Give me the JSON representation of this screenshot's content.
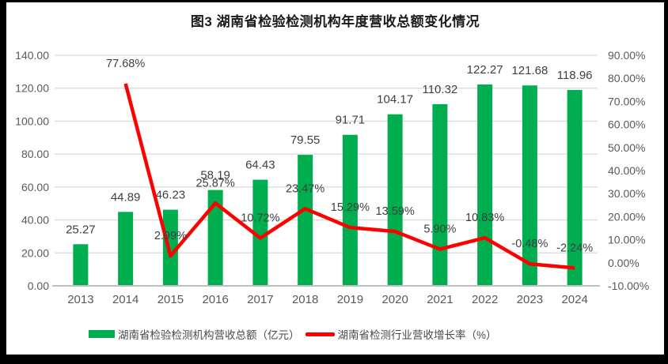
{
  "title": "图3 湖南省检验检测机构年度营收总额变化情况",
  "chart_data": {
    "type": "combo-bar-line",
    "title": "图3 湖南省检验检测机构年度营收总额变化情况",
    "categories": [
      "2013",
      "2014",
      "2015",
      "2016",
      "2017",
      "2018",
      "2019",
      "2020",
      "2021",
      "2022",
      "2023",
      "2024"
    ],
    "series": [
      {
        "name": "湖南省检验检测机构营收总额（亿元）",
        "type": "bar",
        "axis": "left",
        "color": "#00AE50",
        "values": [
          25.27,
          44.89,
          46.23,
          58.19,
          64.43,
          79.55,
          91.71,
          104.17,
          110.32,
          122.27,
          121.68,
          118.96
        ],
        "data_labels": [
          "25.27",
          "44.89",
          "46.23",
          "58.19",
          "64.43",
          "79.55",
          "91.71",
          "104.17",
          "110.32",
          "122.27",
          "121.68",
          "118.96"
        ]
      },
      {
        "name": "湖南省检测行业营收增长率（%）",
        "type": "line",
        "axis": "right",
        "color": "#FF0000",
        "values": [
          null,
          77.68,
          2.99,
          25.87,
          10.72,
          23.47,
          15.29,
          13.59,
          5.9,
          10.83,
          -0.48,
          -2.24
        ],
        "data_labels": [
          null,
          "77.68%",
          "2.99%",
          "25.87%",
          "10.72%",
          "23.47%",
          "15.29%",
          "13.59%",
          "5.90%",
          "10.83%",
          "-0.48%",
          "-2.24%"
        ]
      }
    ],
    "left_axis": {
      "min": 0,
      "max": 140,
      "step": 20,
      "tick_labels": [
        "0.00",
        "20.00",
        "40.00",
        "60.00",
        "80.00",
        "100.00",
        "120.00",
        "140.00"
      ]
    },
    "right_axis": {
      "min": -10,
      "max": 90,
      "step": 10,
      "tick_labels": [
        "-10.00%",
        "0.00%",
        "10.00%",
        "20.00%",
        "30.00%",
        "40.00%",
        "50.00%",
        "60.00%",
        "70.00%",
        "80.00%",
        "90.00%"
      ]
    },
    "grid": true,
    "legend_position": "bottom"
  },
  "legend": {
    "items": [
      {
        "label": "湖南省检验检测机构营收总额（亿元）",
        "swatch": "rect",
        "color": "#00AE50"
      },
      {
        "label": "湖南省检测行业营收增长率（%）",
        "swatch": "line",
        "color": "#FF0000"
      }
    ]
  },
  "colors": {
    "bar": "#00AE50",
    "line": "#FF0000",
    "grid": "#D9D9D9",
    "axis_line": "#BFBFBF",
    "tick_text": "#595959",
    "data_label_text": "#3F3F3F",
    "title_text": "#1A1A1A",
    "frame": "#000000",
    "background": "#FFFFFF"
  }
}
